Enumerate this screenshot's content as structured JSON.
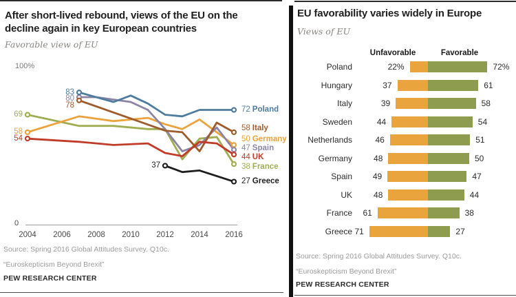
{
  "left_panel": {
    "title": "After short-lived rebound, views of the EU on the decline again in key European countries",
    "subtitle": "Favorable view of EU",
    "y_axis_top_label": "100%",
    "y_axis_zero_label": "0",
    "source": "Source: Spring 2016 Global Attitudes Survey. Q10c.",
    "report": "“Euroskepticism Beyond Brexit”",
    "org": "PEW RESEARCH CENTER"
  },
  "right_panel": {
    "title": "EU favorability varies widely in Europe",
    "subtitle": "Views of EU",
    "source": "Source: Spring 2016 Global Attitudes Survey. Q10c.",
    "report": "“Euroskepticism Beyond Brexit”",
    "org": "PEW RESEARCH CENTER"
  },
  "colors": {
    "poland_blue": "#4E7C9E",
    "spain_purple": "#8B84A5",
    "italy_brown": "#A05B2C",
    "germany_gold": "#EBA33D",
    "france_olive": "#A0AD52",
    "uk_red": "#C03B28",
    "greece_black": "#1E1E1E",
    "bar_orange": "#E9A43D",
    "bar_green": "#8D9C4F",
    "axis_gray": "#9B9B9B"
  },
  "chart_data": [
    {
      "type": "line",
      "title": "After short-lived rebound, views of the EU on the decline again in key European countries",
      "subtitle": "Favorable view of EU",
      "ylabel": "Favorable view of EU (%)",
      "ylim": [
        0,
        100
      ],
      "xlim": [
        2004,
        2016
      ],
      "x_ticks": [
        2004,
        2006,
        2008,
        2010,
        2012,
        2014,
        2016
      ],
      "grid": false,
      "note": "values between labeled endpoints estimated from plotted lines",
      "series": [
        {
          "name": "France",
          "color": "#A0AD52",
          "start_value": 69,
          "end_value": 38,
          "points": [
            [
              2004,
              69
            ],
            [
              2007,
              62
            ],
            [
              2009,
              62
            ],
            [
              2011,
              60
            ],
            [
              2012,
              60
            ],
            [
              2013,
              41
            ],
            [
              2014,
              54
            ],
            [
              2015,
              55
            ],
            [
              2016,
              38
            ]
          ]
        },
        {
          "name": "Germany",
          "color": "#EBA33D",
          "start_value": 58,
          "end_value": 50,
          "points": [
            [
              2004,
              58
            ],
            [
              2007,
              68
            ],
            [
              2009,
              65
            ],
            [
              2011,
              67
            ],
            [
              2012,
              63
            ],
            [
              2013,
              60
            ],
            [
              2014,
              66
            ],
            [
              2015,
              58
            ],
            [
              2016,
              50
            ]
          ]
        },
        {
          "name": "Spain",
          "color": "#8B84A5",
          "start_value": 80,
          "end_value": 47,
          "points": [
            [
              2007,
              80
            ],
            [
              2008,
              80
            ],
            [
              2010,
              77
            ],
            [
              2011,
              72
            ],
            [
              2012,
              60
            ],
            [
              2013,
              46
            ],
            [
              2014,
              50
            ],
            [
              2015,
              61
            ],
            [
              2016,
              47
            ]
          ]
        },
        {
          "name": "Italy",
          "color": "#A05B2C",
          "start_value": 78,
          "end_value": 58,
          "points": [
            [
              2007,
              78
            ],
            [
              2012,
              59
            ],
            [
              2013,
              58
            ],
            [
              2014,
              46
            ],
            [
              2015,
              64
            ],
            [
              2016,
              58
            ]
          ]
        },
        {
          "name": "UK",
          "color": "#C03B28",
          "start_value": 54,
          "end_value": 44,
          "points": [
            [
              2004,
              54
            ],
            [
              2007,
              52
            ],
            [
              2009,
              50
            ],
            [
              2011,
              51
            ],
            [
              2012,
              45
            ],
            [
              2013,
              43
            ],
            [
              2014,
              52
            ],
            [
              2015,
              51
            ],
            [
              2016,
              44
            ]
          ]
        },
        {
          "name": "Poland",
          "color": "#4E7C9E",
          "start_value": 83,
          "end_value": 72,
          "points": [
            [
              2007,
              83
            ],
            [
              2009,
              77
            ],
            [
              2010,
              81
            ],
            [
              2011,
              76
            ],
            [
              2012,
              69
            ],
            [
              2013,
              68
            ],
            [
              2014,
              72
            ],
            [
              2015,
              72
            ],
            [
              2016,
              72
            ]
          ]
        },
        {
          "name": "Greece",
          "color": "#1E1E1E",
          "start_value": 37,
          "end_value": 27,
          "points": [
            [
              2012,
              37
            ],
            [
              2013,
              33
            ],
            [
              2014,
              34
            ],
            [
              2016,
              27
            ]
          ]
        }
      ]
    },
    {
      "type": "bar",
      "orientation": "diverging-horizontal",
      "title": "EU favorability varies widely in Europe",
      "subtitle": "Views of EU",
      "categories": [
        "Poland",
        "Hungary",
        "Italy",
        "Sweden",
        "Netherlands",
        "Germany",
        "Spain",
        "UK",
        "France",
        "Greece"
      ],
      "series": [
        {
          "name": "Unfavorable",
          "color": "#E9A43D",
          "values": [
            22,
            37,
            39,
            44,
            46,
            48,
            49,
            48,
            61,
            71
          ],
          "labels": [
            "22%",
            "37",
            "39",
            "44",
            "46",
            "48",
            "49",
            "48",
            "61",
            "71"
          ]
        },
        {
          "name": "Favorable",
          "color": "#8D9C4F",
          "values": [
            72,
            61,
            58,
            54,
            51,
            50,
            47,
            44,
            38,
            27
          ],
          "labels": [
            "72%",
            "61",
            "58",
            "54",
            "51",
            "50",
            "47",
            "44",
            "38",
            "27"
          ]
        }
      ]
    }
  ]
}
